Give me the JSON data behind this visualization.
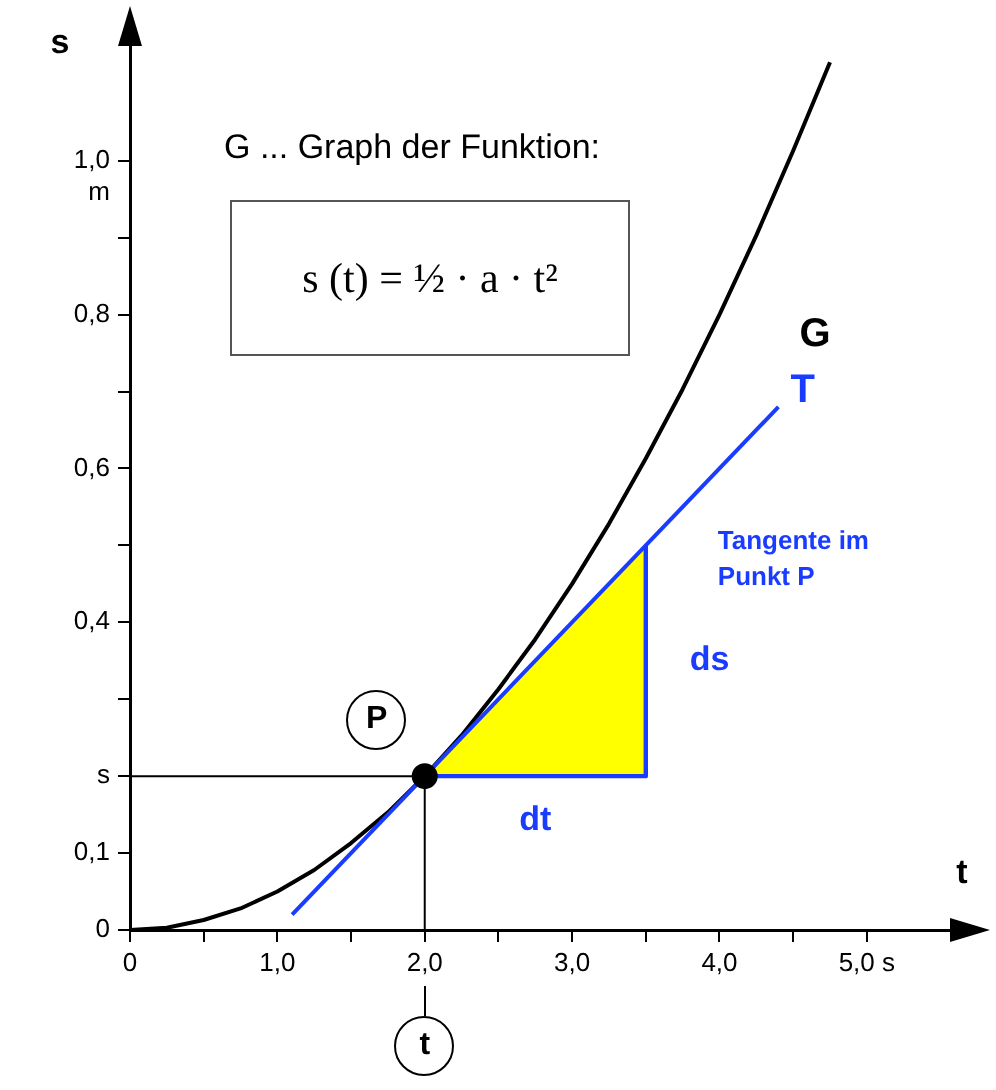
{
  "chart_data": {
    "type": "line",
    "title": "G ... Graph der Funktion:",
    "subtitle": "s (t) = ½ · a · t²",
    "xlabel": "t",
    "ylabel": "s",
    "xlim": [
      0,
      5.7
    ],
    "ylim": [
      0,
      1.17
    ],
    "xticks": [
      0,
      {
        "value": 0.5,
        "label": null
      },
      {
        "value": 1,
        "label": "1,0"
      },
      {
        "value": 1.5,
        "label": null
      },
      {
        "value": 2,
        "label": "2,0"
      },
      {
        "value": 2.5,
        "label": null
      },
      {
        "value": 3,
        "label": "3,0"
      },
      {
        "value": 3.5,
        "label": null
      },
      {
        "value": 4,
        "label": "4,0"
      },
      {
        "value": 4.5,
        "label": null
      },
      {
        "value": 5,
        "label": "5,0 s"
      }
    ],
    "yticks": [
      0,
      {
        "value": 0.1,
        "label": "0,1"
      },
      {
        "value": 0.2,
        "label": "s"
      },
      {
        "value": 0.3,
        "label": null
      },
      {
        "value": 0.4,
        "label": "0,4"
      },
      {
        "value": 0.5,
        "label": null
      },
      {
        "value": 0.6,
        "label": "0,6"
      },
      {
        "value": 0.7,
        "label": null
      },
      {
        "value": 0.8,
        "label": "0,8"
      },
      {
        "value": 0.9,
        "label": null
      },
      {
        "value": 1.0,
        "label": "1,0 m"
      }
    ],
    "grid": false,
    "legend": false,
    "series": [
      {
        "name": "G",
        "type": "line",
        "color": "#000000",
        "x": [
          0,
          0.25,
          0.5,
          0.75,
          1,
          1.25,
          1.5,
          1.75,
          2,
          2.25,
          2.5,
          2.75,
          3,
          3.25,
          3.5,
          3.75,
          4,
          4.25,
          4.5,
          4.75
        ],
        "values": [
          0,
          0.003,
          0.013,
          0.028,
          0.05,
          0.078,
          0.113,
          0.153,
          0.2,
          0.253,
          0.313,
          0.378,
          0.45,
          0.528,
          0.613,
          0.703,
          0.8,
          0.903,
          1.013,
          1.128
        ]
      },
      {
        "name": "T",
        "type": "line",
        "color": "#1a3cff",
        "x": [
          1.1,
          4.4
        ],
        "values": [
          0.02,
          0.68
        ]
      },
      {
        "type": "area",
        "color": "#ffff00",
        "x": [
          2,
          3.5,
          3.5
        ],
        "values": [
          0.2,
          0.2,
          0.5
        ]
      },
      {
        "type": "line",
        "color": "#000000",
        "x": [
          0,
          2,
          2
        ],
        "values": [
          0.2,
          0.2,
          0
        ]
      },
      {
        "type": "scatter",
        "color": "#000000",
        "x": [
          2
        ],
        "values": [
          0.2
        ]
      }
    ],
    "annotations": [
      {
        "text": "P",
        "x": 2,
        "y": 0.2
      },
      "t",
      {
        "text": "dt",
        "x": 2.75,
        "y": 0.2
      },
      {
        "text": "ds",
        "x": 3.5,
        "y": 0.35
      },
      {
        "text": "Tangente im Punkt P",
        "x": 3.5,
        "y": 0.5
      }
    ]
  }
}
